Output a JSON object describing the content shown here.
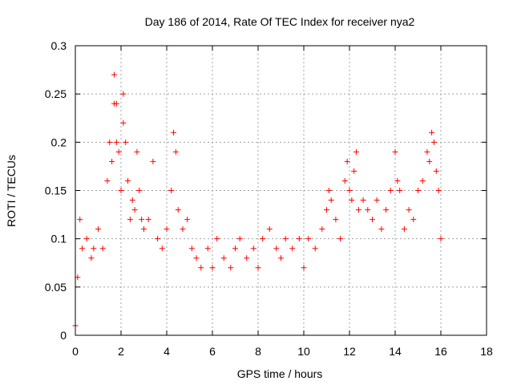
{
  "chart_data": {
    "type": "scatter",
    "title": "Day 186 of 2014, Rate Of TEC Index for receiver nya2",
    "xlabel": "GPS time / hours",
    "ylabel": "ROTI / TECUs",
    "xlim": [
      0,
      18
    ],
    "ylim": [
      0,
      0.3
    ],
    "xticks": [
      0,
      2,
      4,
      6,
      8,
      10,
      12,
      14,
      16,
      18
    ],
    "yticks": [
      0,
      0.05,
      0.1,
      0.15,
      0.2,
      0.25,
      0.3
    ],
    "xtick_labels": [
      "0",
      "2",
      "4",
      "6",
      "8",
      "10",
      "12",
      "14",
      "16",
      "18"
    ],
    "ytick_labels": [
      "0",
      "0.05",
      "0.1",
      "0.15",
      "0.2",
      "0.25",
      "0.3"
    ],
    "grid": true,
    "marker": "+",
    "marker_color": "#ff0000",
    "series": [
      {
        "name": "ROTI",
        "points": [
          [
            0.0,
            0.01
          ],
          [
            0.1,
            0.06
          ],
          [
            0.2,
            0.12
          ],
          [
            0.3,
            0.09
          ],
          [
            0.5,
            0.1
          ],
          [
            0.7,
            0.08
          ],
          [
            0.8,
            0.09
          ],
          [
            1.0,
            0.11
          ],
          [
            1.2,
            0.09
          ],
          [
            1.4,
            0.16
          ],
          [
            1.5,
            0.2
          ],
          [
            1.6,
            0.18
          ],
          [
            1.7,
            0.27
          ],
          [
            1.7,
            0.24
          ],
          [
            1.8,
            0.24
          ],
          [
            1.8,
            0.2
          ],
          [
            1.9,
            0.19
          ],
          [
            2.0,
            0.15
          ],
          [
            2.1,
            0.25
          ],
          [
            2.1,
            0.22
          ],
          [
            2.2,
            0.2
          ],
          [
            2.3,
            0.16
          ],
          [
            2.4,
            0.12
          ],
          [
            2.5,
            0.14
          ],
          [
            2.6,
            0.13
          ],
          [
            2.7,
            0.19
          ],
          [
            2.8,
            0.15
          ],
          [
            2.9,
            0.12
          ],
          [
            3.0,
            0.11
          ],
          [
            3.2,
            0.12
          ],
          [
            3.4,
            0.18
          ],
          [
            3.6,
            0.1
          ],
          [
            3.8,
            0.09
          ],
          [
            4.0,
            0.11
          ],
          [
            4.2,
            0.15
          ],
          [
            4.3,
            0.21
          ],
          [
            4.4,
            0.19
          ],
          [
            4.5,
            0.13
          ],
          [
            4.7,
            0.11
          ],
          [
            4.9,
            0.12
          ],
          [
            5.1,
            0.09
          ],
          [
            5.3,
            0.08
          ],
          [
            5.5,
            0.07
          ],
          [
            5.8,
            0.09
          ],
          [
            6.0,
            0.07
          ],
          [
            6.2,
            0.1
          ],
          [
            6.5,
            0.08
          ],
          [
            6.8,
            0.07
          ],
          [
            7.0,
            0.09
          ],
          [
            7.2,
            0.1
          ],
          [
            7.5,
            0.08
          ],
          [
            7.8,
            0.09
          ],
          [
            8.0,
            0.07
          ],
          [
            8.2,
            0.1
          ],
          [
            8.5,
            0.11
          ],
          [
            8.8,
            0.09
          ],
          [
            9.0,
            0.08
          ],
          [
            9.2,
            0.1
          ],
          [
            9.5,
            0.09
          ],
          [
            9.8,
            0.1
          ],
          [
            10.0,
            0.07
          ],
          [
            10.2,
            0.1
          ],
          [
            10.5,
            0.09
          ],
          [
            10.8,
            0.11
          ],
          [
            11.0,
            0.13
          ],
          [
            11.1,
            0.15
          ],
          [
            11.2,
            0.14
          ],
          [
            11.4,
            0.12
          ],
          [
            11.6,
            0.1
          ],
          [
            11.8,
            0.16
          ],
          [
            11.9,
            0.18
          ],
          [
            12.0,
            0.15
          ],
          [
            12.1,
            0.14
          ],
          [
            12.2,
            0.17
          ],
          [
            12.3,
            0.19
          ],
          [
            12.4,
            0.13
          ],
          [
            12.6,
            0.14
          ],
          [
            12.8,
            0.13
          ],
          [
            13.0,
            0.12
          ],
          [
            13.2,
            0.14
          ],
          [
            13.4,
            0.11
          ],
          [
            13.6,
            0.13
          ],
          [
            13.8,
            0.15
          ],
          [
            14.0,
            0.19
          ],
          [
            14.1,
            0.16
          ],
          [
            14.2,
            0.15
          ],
          [
            14.4,
            0.11
          ],
          [
            14.6,
            0.13
          ],
          [
            14.8,
            0.12
          ],
          [
            15.0,
            0.15
          ],
          [
            15.2,
            0.16
          ],
          [
            15.4,
            0.19
          ],
          [
            15.5,
            0.18
          ],
          [
            15.6,
            0.21
          ],
          [
            15.7,
            0.2
          ],
          [
            15.8,
            0.17
          ],
          [
            15.9,
            0.15
          ],
          [
            16.0,
            0.1
          ]
        ]
      }
    ]
  }
}
